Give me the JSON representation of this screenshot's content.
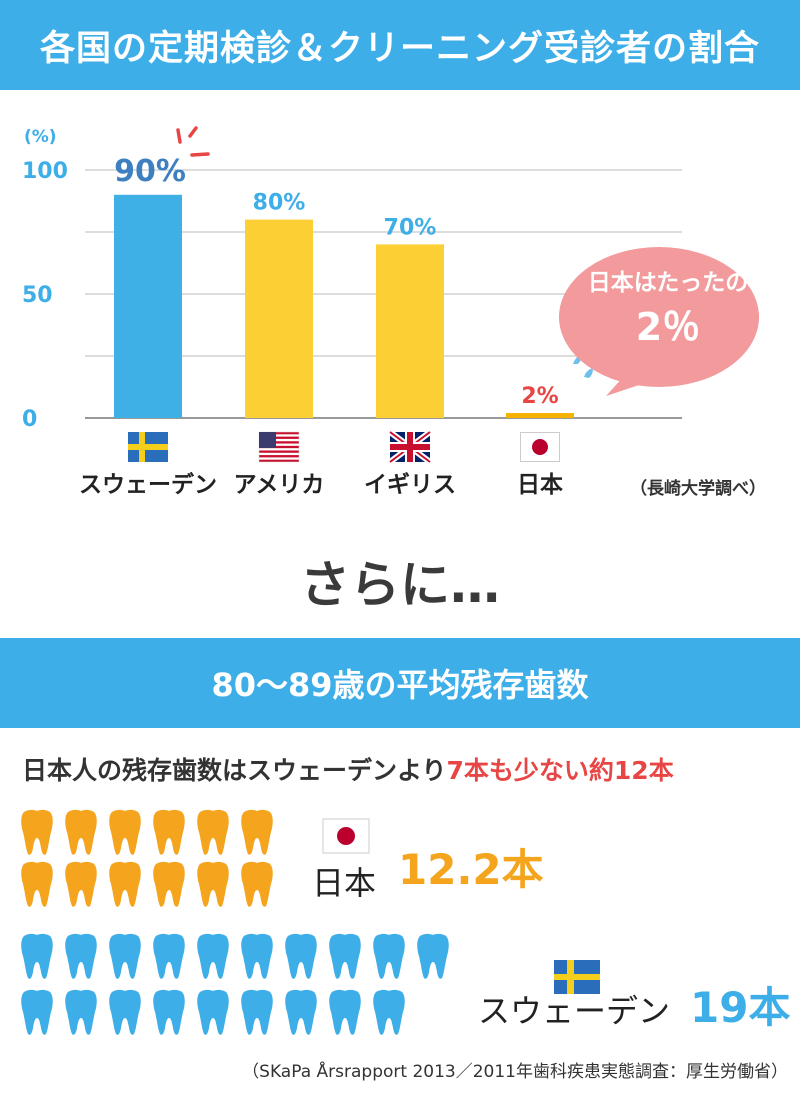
{
  "header": {
    "title": "各国の定期検診＆クリーニング受診者の割合"
  },
  "chart_data": {
    "type": "bar",
    "categories": [
      "スウェーデン",
      "アメリカ",
      "イギリス",
      "日本"
    ],
    "values": [
      90,
      80,
      70,
      2
    ],
    "data_labels": [
      "90%",
      "80%",
      "70%",
      "2%"
    ],
    "colors": [
      "#3fb0e6",
      "#fcd034",
      "#fcd034",
      "#f5b200"
    ],
    "label_colors": [
      "#3d7fbf",
      "#3daee8",
      "#3daee8",
      "#e84545"
    ],
    "ylim": [
      0,
      100
    ],
    "yticks": [
      "0",
      "50",
      "100"
    ],
    "ylabel": "(%)",
    "grid": true,
    "callout": {
      "line1": "日本はたったの",
      "line2": "2％"
    },
    "source": "（長崎大学調べ）"
  },
  "transition": {
    "text": "さらに…"
  },
  "section2": {
    "title": "80〜89歳の平均残存歯数",
    "compare_prefix": "日本人の残存歯数はスウェーデンより",
    "compare_highlight": "7本も少ない約12本",
    "japan": {
      "name": "日本",
      "count_label": "12.2本",
      "teeth": 12.2,
      "color": "#f4a41d"
    },
    "sweden": {
      "name": "スウェーデン",
      "count_label": "19本",
      "teeth": 19,
      "color": "#3daee8"
    },
    "source": "（SKaPa Årsrapport 2013／2011年歯科疾患実態調査：厚生労働省）"
  }
}
